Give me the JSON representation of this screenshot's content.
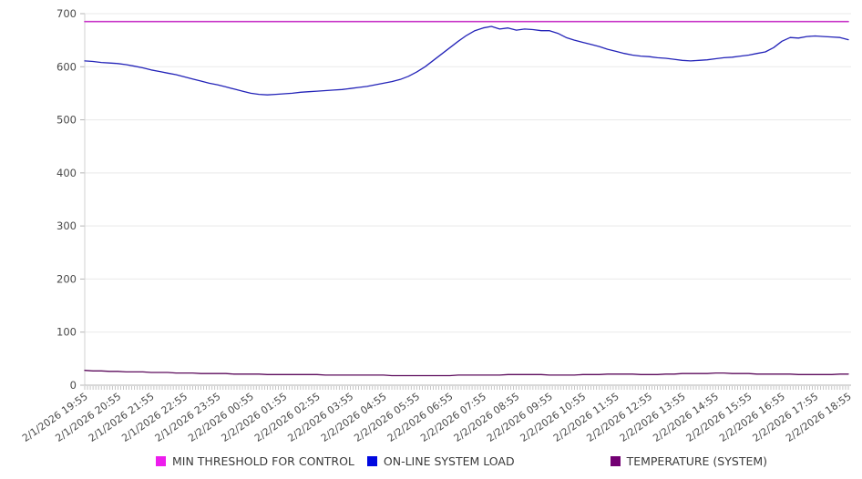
{
  "chart_data": {
    "type": "line",
    "title": "",
    "xlabel": "",
    "ylabel": "",
    "grid": "horizontal",
    "legend_position": "bottom",
    "x_axis": {
      "start": "2/1/2026 19:55",
      "end": "2/2/2026 18:55",
      "major_tick_interval_minutes": 60,
      "minor_tick_interval_minutes": 5,
      "tick_labels": [
        "2/1/2026 19:55",
        "2/1/2026 20:55",
        "2/1/2026 21:55",
        "2/1/2026 22:55",
        "2/1/2026 23:55",
        "2/2/2026 00:55",
        "2/2/2026 01:55",
        "2/2/2026 02:55",
        "2/2/2026 03:55",
        "2/2/2026 04:55",
        "2/2/2026 05:55",
        "2/2/2026 06:55",
        "2/2/2026 07:55",
        "2/2/2026 08:55",
        "2/2/2026 09:55",
        "2/2/2026 10:55",
        "2/2/2026 11:55",
        "2/2/2026 12:55",
        "2/2/2026 13:55",
        "2/2/2026 14:55",
        "2/2/2026 15:55",
        "2/2/2026 16:55",
        "2/2/2026 17:55",
        "2/2/2026 18:55"
      ]
    },
    "y_axis": {
      "min": 0,
      "max": 700,
      "tick_step": 100,
      "tick_labels": [
        "0",
        "100",
        "200",
        "300",
        "400",
        "500",
        "600",
        "700"
      ]
    },
    "series": [
      {
        "name": "MIN THRESHOLD FOR CONTROL",
        "color": "#c837c8",
        "swatch_color": "#ed1ded",
        "kind": "constant",
        "value": 685
      },
      {
        "name": "ON-LINE SYSTEM LOAD",
        "color": "#2323b8",
        "swatch_color": "#0008e0",
        "kind": "sampled",
        "sample_minutes": 15,
        "values": [
          611,
          610,
          608,
          607,
          606,
          604,
          601,
          598,
          594,
          591,
          588,
          585,
          581,
          577,
          573,
          569,
          566,
          562,
          558,
          554,
          550,
          548,
          547,
          548,
          549,
          550,
          552,
          553,
          554,
          555,
          556,
          557,
          559,
          561,
          563,
          566,
          569,
          572,
          576,
          582,
          590,
          600,
          612,
          624,
          636,
          648,
          659,
          668,
          673,
          676,
          671,
          673,
          669,
          671,
          670,
          668,
          668,
          663,
          655,
          650,
          646,
          642,
          638,
          633,
          629,
          625,
          622,
          620,
          619,
          617,
          616,
          614,
          612,
          611,
          612,
          613,
          615,
          617,
          618,
          620,
          622,
          625,
          628,
          636,
          648,
          655,
          654,
          657,
          658,
          657,
          656,
          655,
          651
        ]
      },
      {
        "name": "TEMPERATURE (SYSTEM)",
        "color": "#5c0b5c",
        "swatch_color": "#730073",
        "kind": "sampled",
        "sample_minutes": 15,
        "values": [
          28,
          27,
          27,
          26,
          26,
          25,
          25,
          25,
          24,
          24,
          24,
          23,
          23,
          23,
          22,
          22,
          22,
          22,
          21,
          21,
          21,
          21,
          20,
          20,
          20,
          20,
          20,
          20,
          20,
          19,
          19,
          19,
          19,
          19,
          19,
          19,
          19,
          18,
          18,
          18,
          18,
          18,
          18,
          18,
          18,
          19,
          19,
          19,
          19,
          19,
          19,
          20,
          20,
          20,
          20,
          20,
          19,
          19,
          19,
          19,
          20,
          20,
          20,
          21,
          21,
          21,
          21,
          20,
          20,
          20,
          21,
          21,
          22,
          22,
          22,
          22,
          23,
          23,
          22,
          22,
          22,
          21,
          21,
          21,
          21,
          21,
          20,
          20,
          20,
          20,
          20,
          21,
          21
        ]
      }
    ]
  },
  "legend": {
    "items_note": "legend labels bound from chart_data.series names"
  }
}
